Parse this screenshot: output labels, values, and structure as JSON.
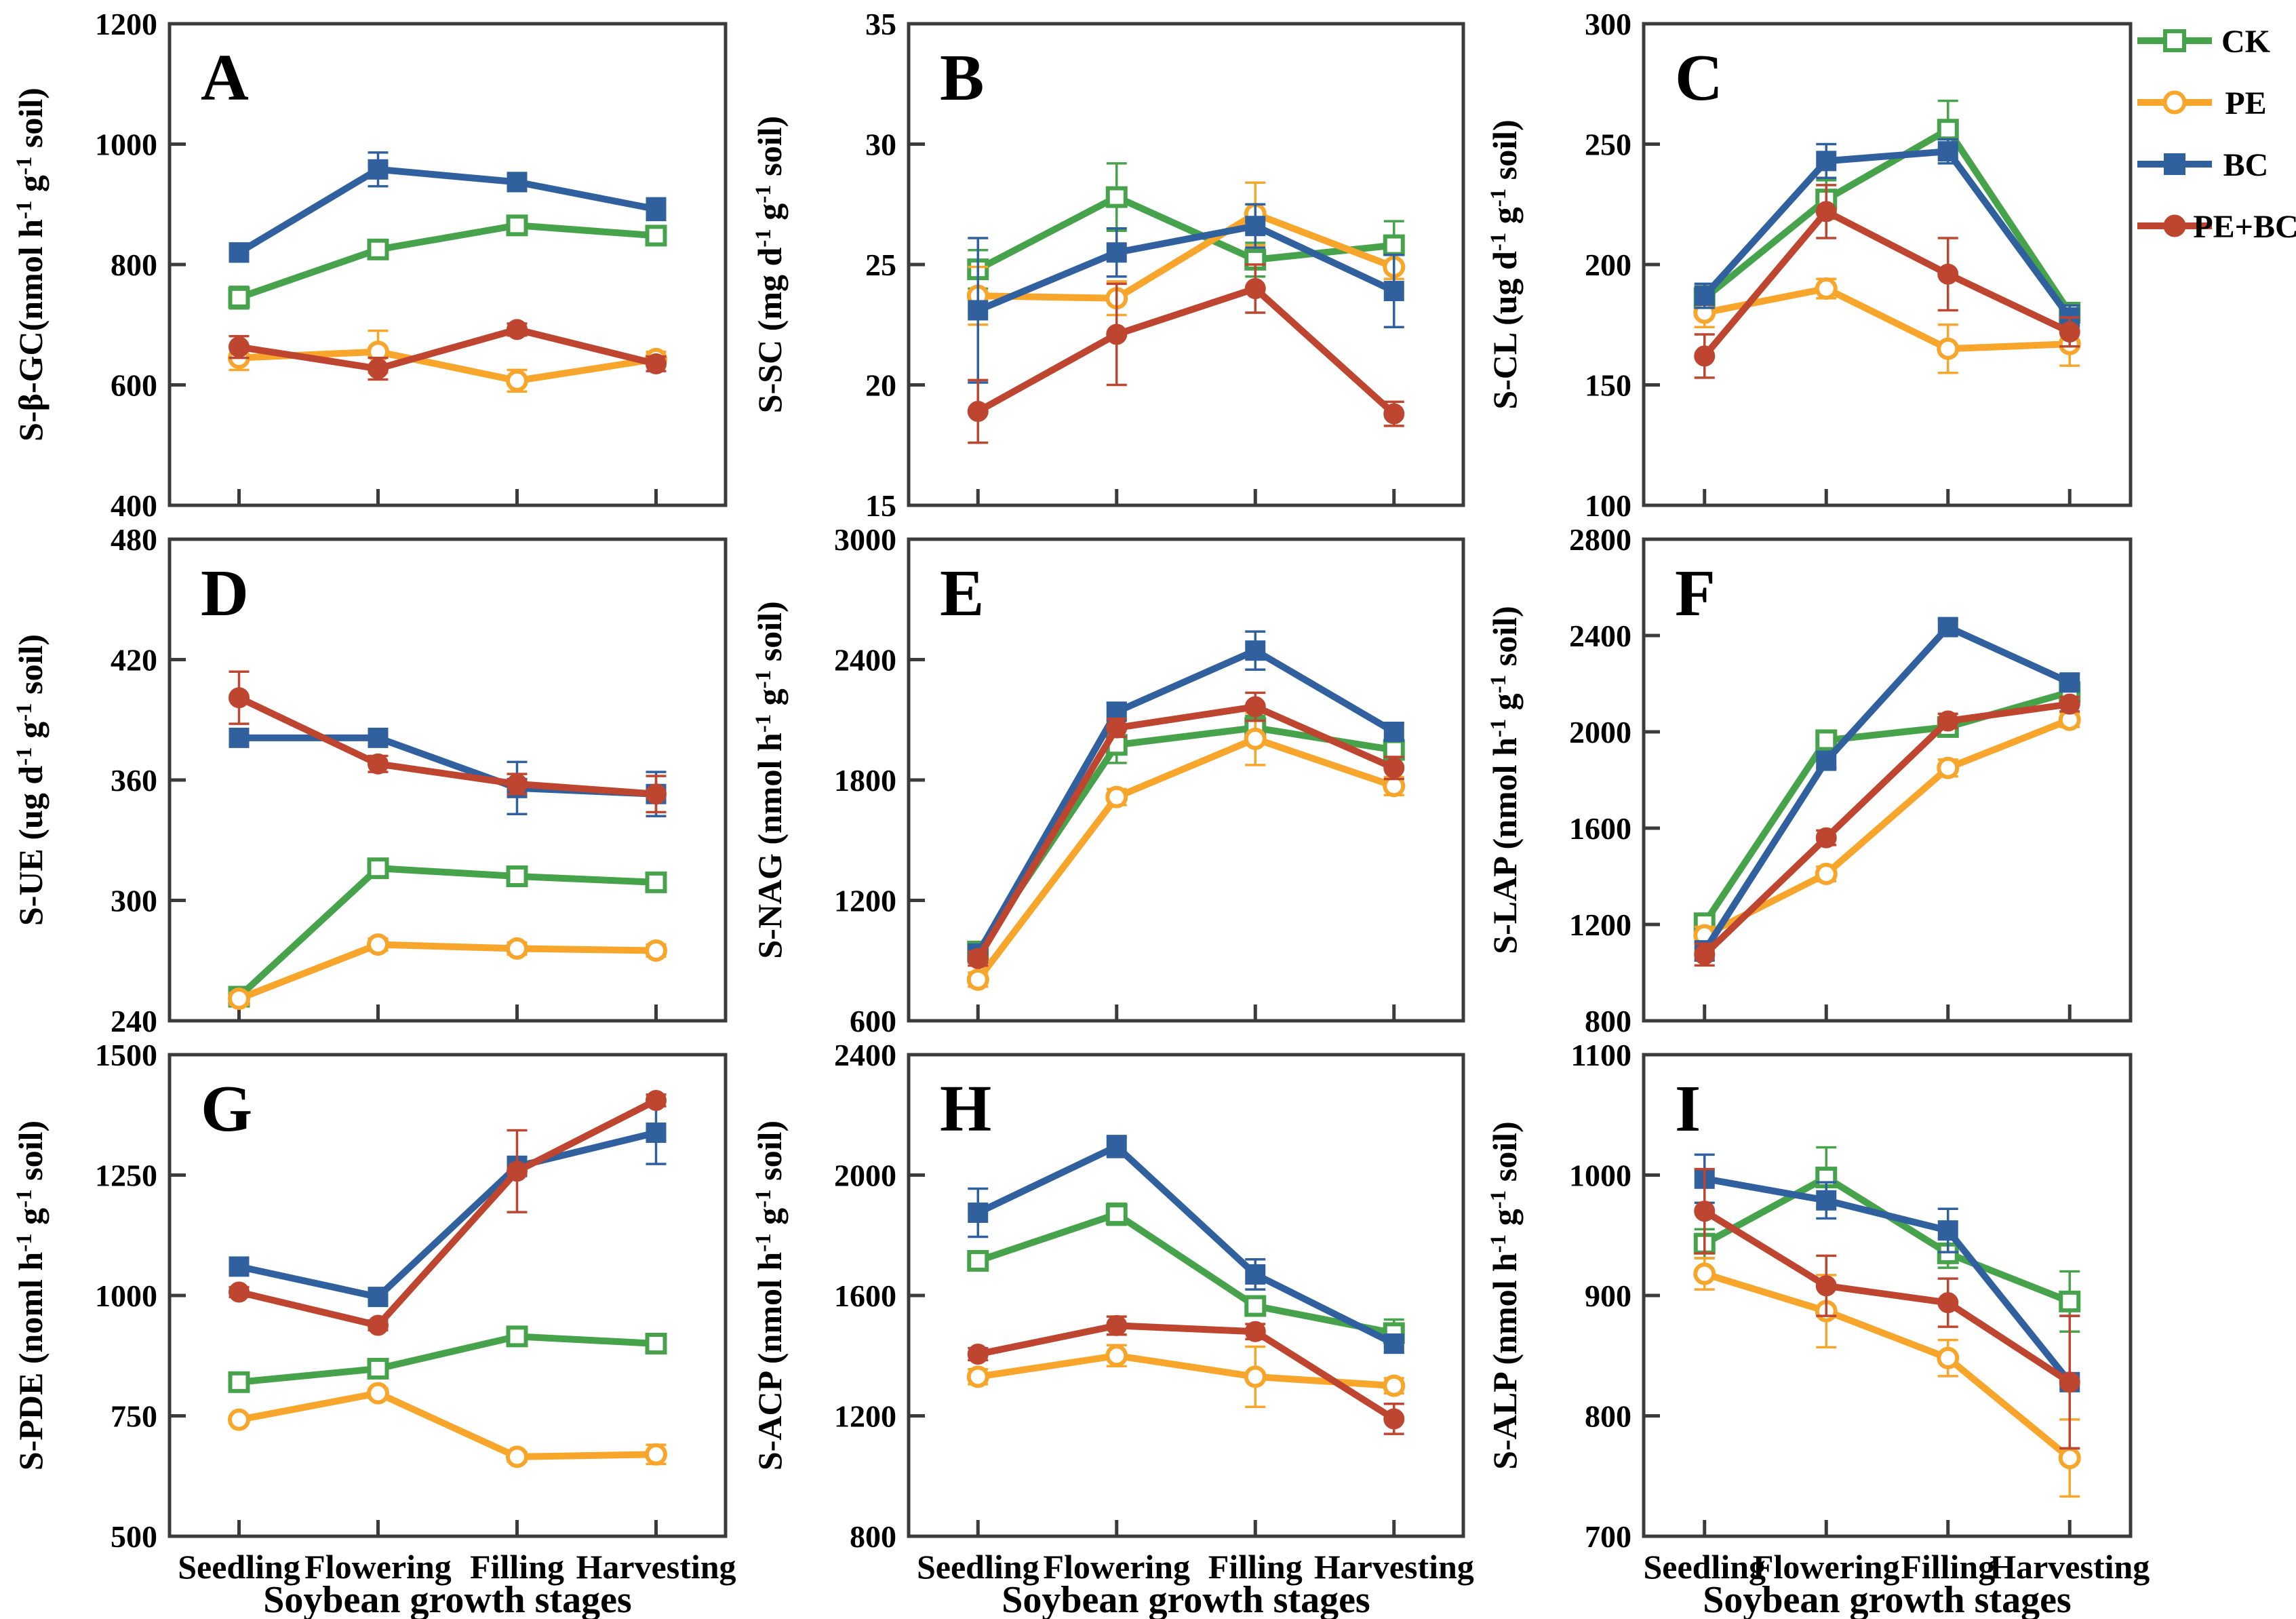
{
  "figure": {
    "background": "#ffffff",
    "frame_color": "#3b3b3b",
    "text_color": "#000000"
  },
  "x_axis": {
    "categories": [
      "Seedling",
      "Flowering",
      "Filling",
      "Harvesting"
    ],
    "title": "Soybean growth stages"
  },
  "legend": {
    "items": [
      {
        "label": "CK",
        "series": "CK"
      },
      {
        "label": "PE",
        "series": "PE"
      },
      {
        "label": "BC",
        "series": "BC"
      },
      {
        "label": "PE+BC",
        "series": "PE+BC"
      }
    ]
  },
  "series_styles": [
    {
      "name": "CK",
      "color": "#47A34B",
      "marker": "square-open"
    },
    {
      "name": "PE",
      "color": "#F7A52B",
      "marker": "circle-open"
    },
    {
      "name": "BC",
      "color": "#30609E",
      "marker": "square-filled"
    },
    {
      "name": "PE+BC",
      "color": "#BE452F",
      "marker": "circle-filled"
    }
  ],
  "chart_data": [
    {
      "type": "line",
      "panel": "A",
      "ylabel": "S-β-GC(nmol h^-1 g^-1 soil)",
      "ylim": [
        400,
        1200
      ],
      "yticks": [
        400,
        600,
        800,
        1000,
        1200
      ],
      "series": [
        {
          "name": "CK",
          "values": [
            745,
            825,
            865,
            848
          ],
          "err": [
            18,
            15,
            12,
            14
          ]
        },
        {
          "name": "PE",
          "values": [
            645,
            655,
            607,
            643
          ],
          "err": [
            20,
            35,
            18,
            12
          ]
        },
        {
          "name": "BC",
          "values": [
            820,
            958,
            937,
            892
          ],
          "err": [
            15,
            28,
            15,
            18
          ]
        },
        {
          "name": "PE+BC",
          "values": [
            663,
            627,
            692,
            635
          ],
          "err": [
            18,
            18,
            10,
            12
          ]
        }
      ]
    },
    {
      "type": "line",
      "panel": "B",
      "ylabel": "S-SC (mg d^-1 g^-1 soil)",
      "ylim": [
        15,
        35
      ],
      "yticks": [
        15,
        20,
        25,
        30,
        35
      ],
      "series": [
        {
          "name": "CK",
          "values": [
            24.8,
            27.8,
            25.2,
            25.8
          ],
          "err": [
            0.8,
            1.4,
            0.7,
            1.0
          ]
        },
        {
          "name": "PE",
          "values": [
            23.7,
            23.6,
            27.1,
            24.9
          ],
          "err": [
            1.2,
            0.7,
            1.3,
            0.5
          ]
        },
        {
          "name": "BC",
          "values": [
            23.1,
            25.5,
            26.6,
            23.9
          ],
          "err": [
            3.0,
            1.0,
            0.9,
            1.5
          ]
        },
        {
          "name": "PE+BC",
          "values": [
            18.9,
            22.1,
            24.0,
            18.8
          ],
          "err": [
            1.3,
            2.1,
            1.0,
            0.5
          ]
        }
      ]
    },
    {
      "type": "line",
      "panel": "C",
      "ylabel": "S-CL (ug d^-1 g^-1 soil)",
      "ylim": [
        100,
        300
      ],
      "yticks": [
        100,
        150,
        200,
        250,
        300
      ],
      "series": [
        {
          "name": "CK",
          "values": [
            186,
            227,
            256,
            180
          ],
          "err": [
            5,
            8,
            12,
            4
          ]
        },
        {
          "name": "PE",
          "values": [
            180,
            190,
            165,
            167
          ],
          "err": [
            6,
            4,
            10,
            9
          ]
        },
        {
          "name": "BC",
          "values": [
            187,
            243,
            247,
            178
          ],
          "err": [
            5,
            7,
            5,
            5
          ]
        },
        {
          "name": "PE+BC",
          "values": [
            162,
            222,
            196,
            172
          ],
          "err": [
            9,
            11,
            15,
            6
          ]
        }
      ]
    },
    {
      "type": "line",
      "panel": "D",
      "ylabel": "S-UE (ug d^-1 g^-1 soil)",
      "ylim": [
        240,
        480
      ],
      "yticks": [
        240,
        300,
        360,
        420,
        480
      ],
      "series": [
        {
          "name": "CK",
          "values": [
            252,
            316,
            312,
            309
          ],
          "err": [
            3,
            4,
            3,
            3
          ]
        },
        {
          "name": "PE",
          "values": [
            251,
            278,
            276,
            275
          ],
          "err": [
            3,
            3,
            3,
            3
          ]
        },
        {
          "name": "BC",
          "values": [
            381,
            381,
            356,
            353
          ],
          "err": [
            3,
            3,
            13,
            11
          ]
        },
        {
          "name": "PE+BC",
          "values": [
            401,
            368,
            358,
            353
          ],
          "err": [
            13,
            4,
            5,
            9
          ]
        }
      ]
    },
    {
      "type": "line",
      "panel": "E",
      "ylabel": "S-NAG (nmol h^-1 g^-1 soil)",
      "ylim": [
        600,
        3000
      ],
      "yticks": [
        600,
        1200,
        1800,
        2400,
        3000
      ],
      "series": [
        {
          "name": "CK",
          "values": [
            945,
            1975,
            2060,
            1950
          ],
          "err": [
            30,
            90,
            60,
            40
          ]
        },
        {
          "name": "PE",
          "values": [
            805,
            1715,
            2005,
            1770
          ],
          "err": [
            35,
            40,
            130,
            45
          ]
        },
        {
          "name": "BC",
          "values": [
            935,
            2140,
            2445,
            2040
          ],
          "err": [
            35,
            45,
            95,
            45
          ]
        },
        {
          "name": "PE+BC",
          "values": [
            910,
            2060,
            2165,
            1860
          ],
          "err": [
            35,
            45,
            70,
            55
          ]
        }
      ]
    },
    {
      "type": "line",
      "panel": "F",
      "ylabel": "S-LAP (nmol h^-1 g^-1 soil)",
      "ylim": [
        800,
        2800
      ],
      "yticks": [
        800,
        1200,
        1600,
        2000,
        2400,
        2800
      ],
      "series": [
        {
          "name": "CK",
          "values": [
            1205,
            1965,
            2020,
            2165
          ],
          "err": [
            30,
            35,
            30,
            35
          ]
        },
        {
          "name": "PE",
          "values": [
            1155,
            1410,
            1850,
            2050
          ],
          "err": [
            35,
            30,
            35,
            30
          ]
        },
        {
          "name": "BC",
          "values": [
            1090,
            1880,
            2435,
            2205
          ],
          "err": [
            40,
            30,
            30,
            35
          ]
        },
        {
          "name": "PE+BC",
          "values": [
            1075,
            1560,
            2045,
            2115
          ],
          "err": [
            45,
            30,
            30,
            30
          ]
        }
      ]
    },
    {
      "type": "line",
      "panel": "G",
      "ylabel": "S-PDE (noml h^-1 g^-1 soil)",
      "ylim": [
        500,
        1500
      ],
      "yticks": [
        500,
        750,
        1000,
        1250,
        1500
      ],
      "series": [
        {
          "name": "CK",
          "values": [
            820,
            848,
            915,
            900
          ],
          "err": [
            10,
            8,
            15,
            12
          ]
        },
        {
          "name": "PE",
          "values": [
            742,
            797,
            665,
            670
          ],
          "err": [
            8,
            10,
            10,
            20
          ]
        },
        {
          "name": "BC",
          "values": [
            1060,
            997,
            1268,
            1338
          ],
          "err": [
            18,
            12,
            20,
            65
          ]
        },
        {
          "name": "PE+BC",
          "values": [
            1007,
            938,
            1258,
            1405
          ],
          "err": [
            10,
            10,
            85,
            12
          ]
        }
      ]
    },
    {
      "type": "line",
      "panel": "H",
      "ylabel": "S-ACP (nmol h^-1 g^-1 soil)",
      "ylim": [
        800,
        2400
      ],
      "yticks": [
        800,
        1200,
        1600,
        2000,
        2400
      ],
      "series": [
        {
          "name": "CK",
          "values": [
            1715,
            1870,
            1565,
            1475
          ],
          "err": [
            30,
            35,
            30,
            45
          ]
        },
        {
          "name": "PE",
          "values": [
            1330,
            1400,
            1330,
            1300
          ],
          "err": [
            25,
            35,
            100,
            25
          ]
        },
        {
          "name": "BC",
          "values": [
            1875,
            2095,
            1670,
            1440
          ],
          "err": [
            80,
            35,
            50,
            30
          ]
        },
        {
          "name": "PE+BC",
          "values": [
            1405,
            1500,
            1480,
            1190
          ],
          "err": [
            20,
            30,
            25,
            50
          ]
        }
      ]
    },
    {
      "type": "line",
      "panel": "I",
      "ylabel": "S-ALP (nmol h^-1 g^-1 soil)",
      "ylim": [
        700,
        1100
      ],
      "yticks": [
        700,
        800,
        900,
        1000,
        1100
      ],
      "series": [
        {
          "name": "CK",
          "values": [
            943,
            998,
            935,
            895
          ],
          "err": [
            12,
            25,
            12,
            25
          ]
        },
        {
          "name": "PE",
          "values": [
            918,
            887,
            848,
            765
          ],
          "err": [
            13,
            30,
            15,
            32
          ]
        },
        {
          "name": "BC",
          "values": [
            997,
            979,
            954,
            828
          ],
          "err": [
            20,
            15,
            18,
            55
          ]
        },
        {
          "name": "PE+BC",
          "values": [
            970,
            908,
            894,
            828
          ],
          "err": [
            35,
            25,
            20,
            55
          ]
        }
      ]
    }
  ]
}
